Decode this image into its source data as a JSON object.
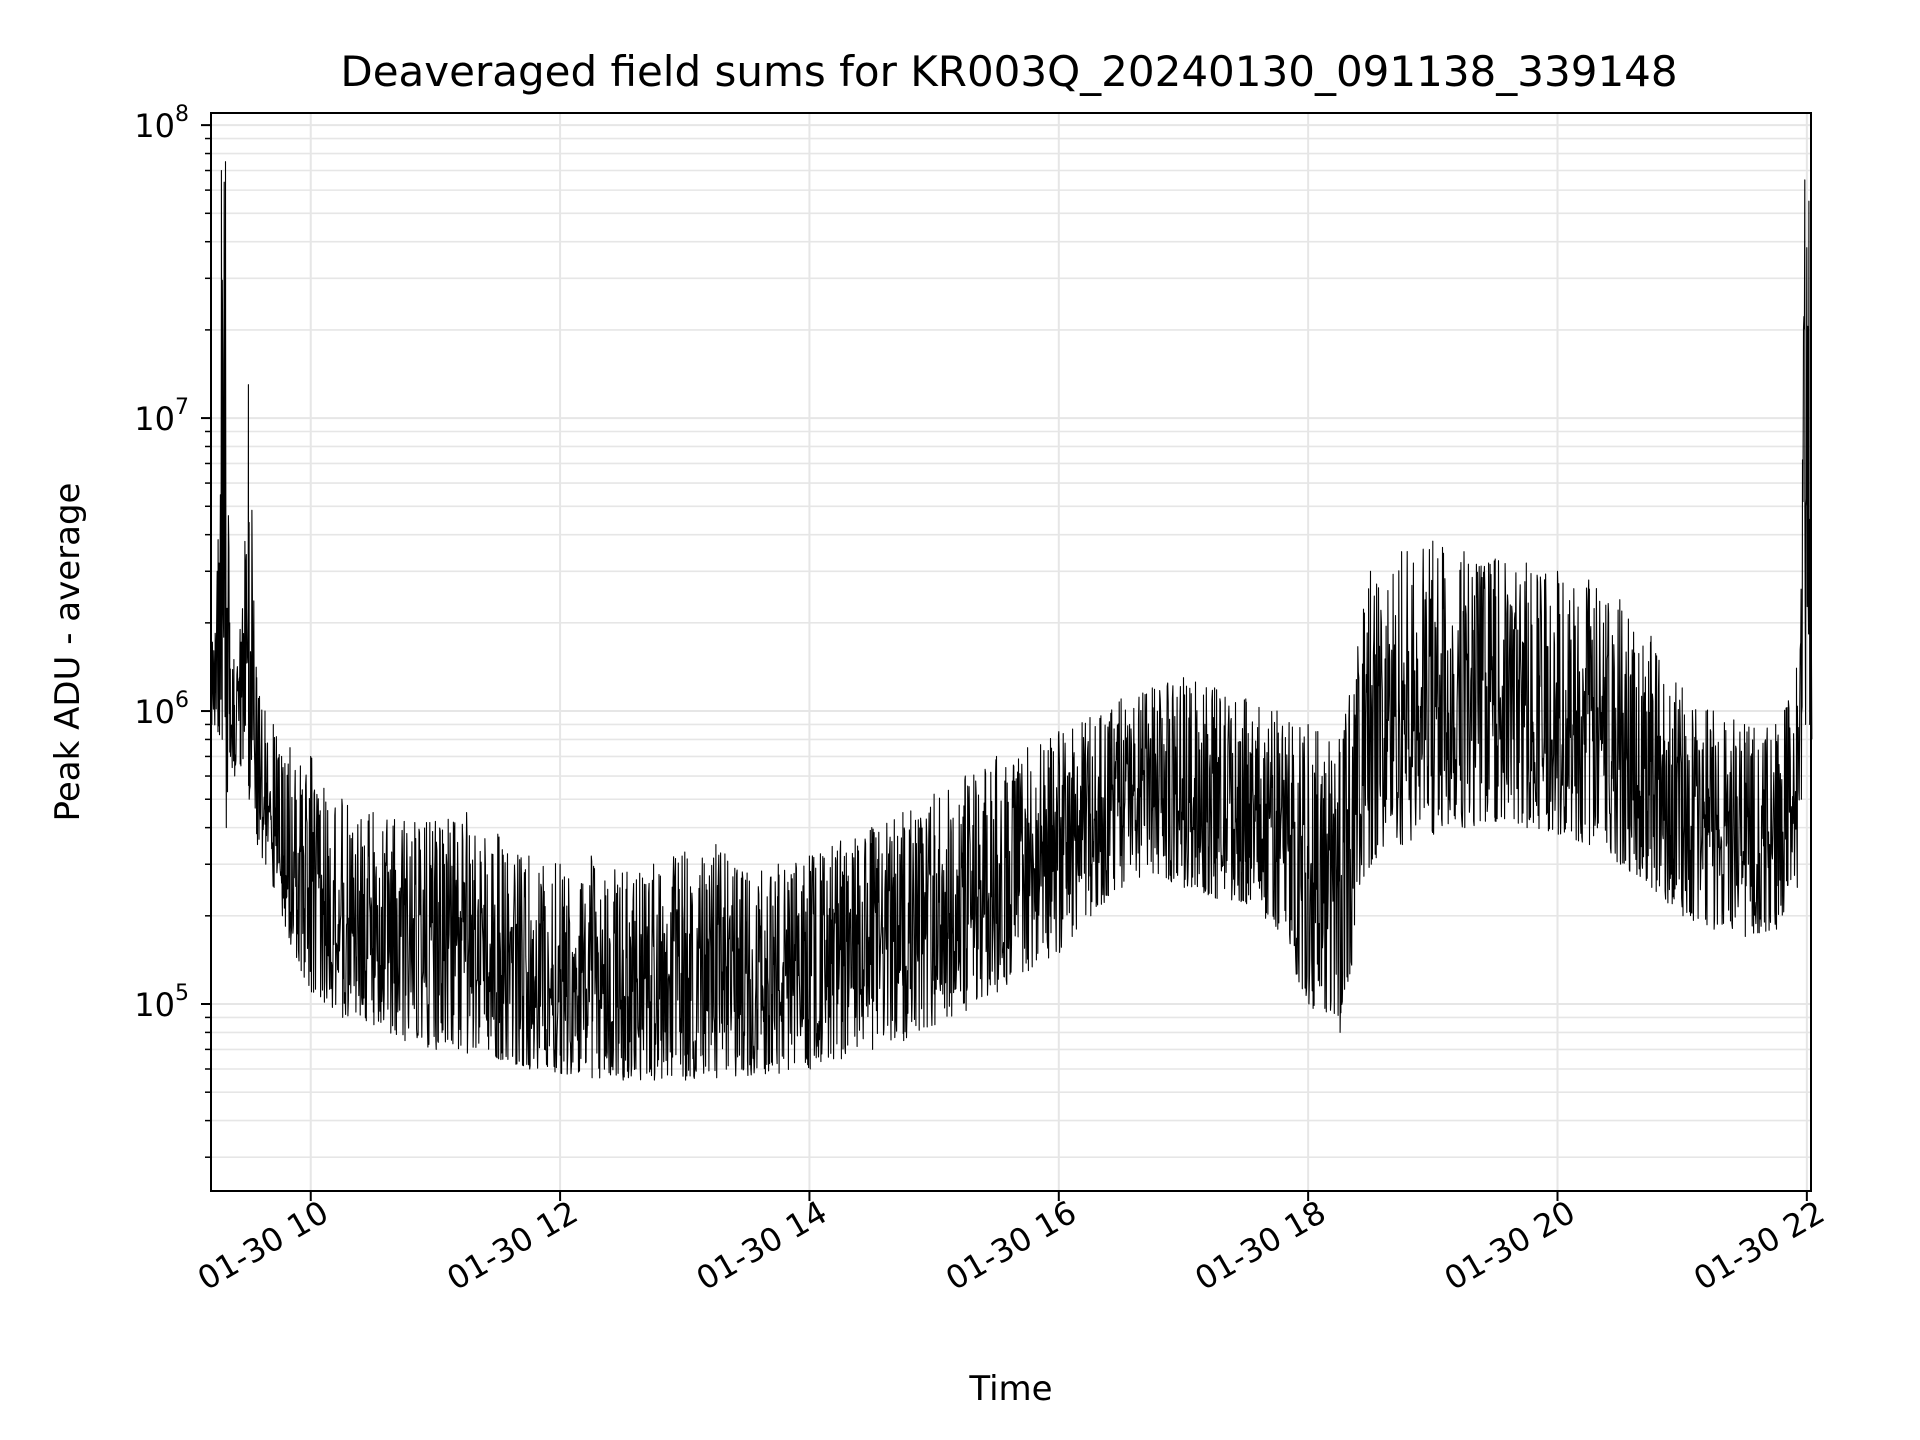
{
  "chart_data": {
    "type": "line",
    "title": "Deaveraged field sums for KR003Q_20240130_091138_339148",
    "xlabel": "Time",
    "ylabel": "Peak ADU - average",
    "y_scale": "log",
    "ylim": [
      23000,
      110000000
    ],
    "xlim": [
      "01-30 09:12",
      "01-30 22:02"
    ],
    "grid": true,
    "legend": "none",
    "line_color": "#000000",
    "x_ticks": [
      "01-30 10",
      "01-30 12",
      "01-30 14",
      "01-30 16",
      "01-30 18",
      "01-30 20",
      "01-30 22"
    ],
    "y_ticks": [
      {
        "value": 100000,
        "base": "10",
        "exp": "5"
      },
      {
        "value": 1000000,
        "base": "10",
        "exp": "6"
      },
      {
        "value": 10000000,
        "base": "10",
        "exp": "7"
      },
      {
        "value": 100000000,
        "base": "10",
        "exp": "8"
      }
    ],
    "series": [
      {
        "x": [
          "01-30 09:12",
          "01-30 09:15",
          "01-30 09:17",
          "01-30 09:19",
          "01-30 09:21",
          "01-30 09:23",
          "01-30 09:26",
          "01-30 09:30",
          "01-30 09:34",
          "01-30 09:38",
          "01-30 09:42",
          "01-30 09:46",
          "01-30 09:50",
          "01-30 09:55",
          "01-30 10:00",
          "01-30 10:15",
          "01-30 10:30",
          "01-30 10:45",
          "01-30 11:00",
          "01-30 11:15",
          "01-30 11:30",
          "01-30 11:45",
          "01-30 12:00",
          "01-30 12:15",
          "01-30 12:30",
          "01-30 12:45",
          "01-30 13:00",
          "01-30 13:15",
          "01-30 13:30",
          "01-30 13:45",
          "01-30 14:00",
          "01-30 14:15",
          "01-30 14:30",
          "01-30 14:45",
          "01-30 15:00",
          "01-30 15:15",
          "01-30 15:30",
          "01-30 15:45",
          "01-30 16:00",
          "01-30 16:15",
          "01-30 16:30",
          "01-30 16:45",
          "01-30 17:00",
          "01-30 17:15",
          "01-30 17:30",
          "01-30 17:45",
          "01-30 18:00",
          "01-30 18:15",
          "01-30 18:30",
          "01-30 18:45",
          "01-30 19:00",
          "01-30 19:15",
          "01-30 19:30",
          "01-30 19:45",
          "01-30 20:00",
          "01-30 20:15",
          "01-30 20:30",
          "01-30 20:45",
          "01-30 21:00",
          "01-30 21:15",
          "01-30 21:30",
          "01-30 21:45",
          "01-30 21:55",
          "01-30 21:57",
          "01-30 21:59",
          "01-30 22:01",
          "01-30 22:02"
        ],
        "upper": [
          1600000,
          3000000,
          70000000,
          75000000,
          2000000,
          1500000,
          1900000,
          13000000,
          1300000,
          1000000,
          900000,
          700000,
          750000,
          650000,
          700000,
          500000,
          450000,
          420000,
          420000,
          450000,
          380000,
          320000,
          300000,
          320000,
          280000,
          300000,
          330000,
          350000,
          280000,
          300000,
          320000,
          360000,
          400000,
          450000,
          520000,
          600000,
          700000,
          750000,
          850000,
          950000,
          1100000,
          1200000,
          1300000,
          1200000,
          1100000,
          1000000,
          900000,
          800000,
          3000000,
          3500000,
          3800000,
          3500000,
          3300000,
          3200000,
          3000000,
          2800000,
          2400000,
          1800000,
          1200000,
          1000000,
          900000,
          900000,
          1400000,
          1700000,
          65000000,
          55000000,
          3500000
        ],
        "lower": [
          900000,
          850000,
          800000,
          400000,
          700000,
          600000,
          650000,
          500000,
          350000,
          300000,
          250000,
          200000,
          160000,
          130000,
          110000,
          90000,
          85000,
          75000,
          70000,
          68000,
          65000,
          60000,
          58000,
          56000,
          55000,
          55000,
          55000,
          56000,
          57000,
          58000,
          60000,
          65000,
          70000,
          75000,
          85000,
          95000,
          110000,
          130000,
          150000,
          200000,
          250000,
          280000,
          250000,
          230000,
          220000,
          180000,
          100000,
          80000,
          300000,
          350000,
          380000,
          400000,
          420000,
          400000,
          380000,
          350000,
          300000,
          250000,
          200000,
          180000,
          170000,
          180000,
          250000,
          500000,
          900000,
          900000,
          800000
        ]
      }
    ]
  }
}
